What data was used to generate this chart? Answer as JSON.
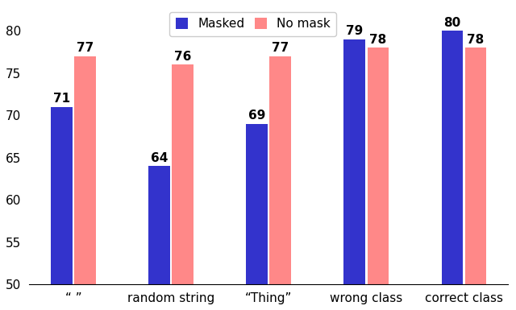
{
  "categories": [
    "“ ”",
    "random string",
    "“Thing”",
    "wrong class",
    "correct class"
  ],
  "masked_values": [
    71,
    64,
    69,
    79,
    80
  ],
  "nomask_values": [
    77,
    76,
    77,
    78,
    78
  ],
  "masked_color": "#3333cc",
  "nomask_color": "#FF8888",
  "ylim": [
    50,
    83
  ],
  "yticks": [
    50,
    55,
    60,
    65,
    70,
    75,
    80
  ],
  "legend_labels": [
    "Masked",
    "No mask"
  ],
  "bar_width": 0.22,
  "label_fontsize": 11,
  "tick_fontsize": 11,
  "legend_fontsize": 11,
  "annotation_fontsize": 11,
  "figsize": [
    6.4,
    3.85
  ],
  "dpi": 100
}
